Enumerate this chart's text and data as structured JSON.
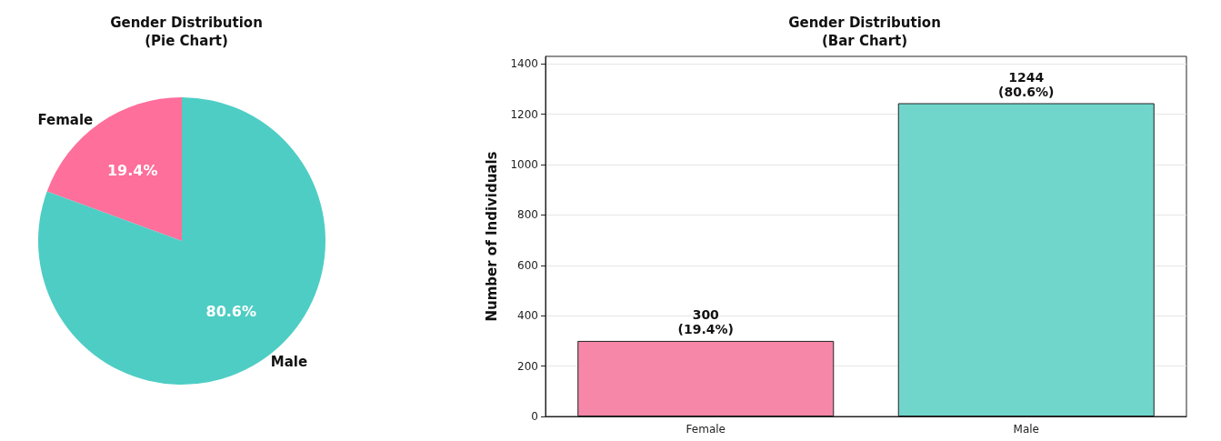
{
  "chart_data": [
    {
      "type": "pie",
      "title": "Gender Distribution\n(Pie Chart)",
      "categories": [
        "Female",
        "Male"
      ],
      "values": [
        19.4,
        80.6
      ],
      "colors": [
        "#fe6f9b",
        "#4ecdc4"
      ],
      "value_labels": [
        "19.4%",
        "80.6%"
      ]
    },
    {
      "type": "bar",
      "title": "Gender Distribution\n(Bar Chart)",
      "ylabel": "Number of Individuals",
      "categories": [
        "Female",
        "Male"
      ],
      "series": [
        {
          "values": [
            300,
            1244
          ],
          "colors": [
            "#f687a8",
            "#70d6cc"
          ],
          "value_labels": [
            "300\n(19.4%)",
            "1244\n(80.6%)"
          ]
        }
      ],
      "ylim": [
        0,
        1430
      ],
      "yticks": [
        0,
        200,
        400,
        600,
        800,
        1000,
        1200,
        1400
      ],
      "grid": "y"
    }
  ]
}
